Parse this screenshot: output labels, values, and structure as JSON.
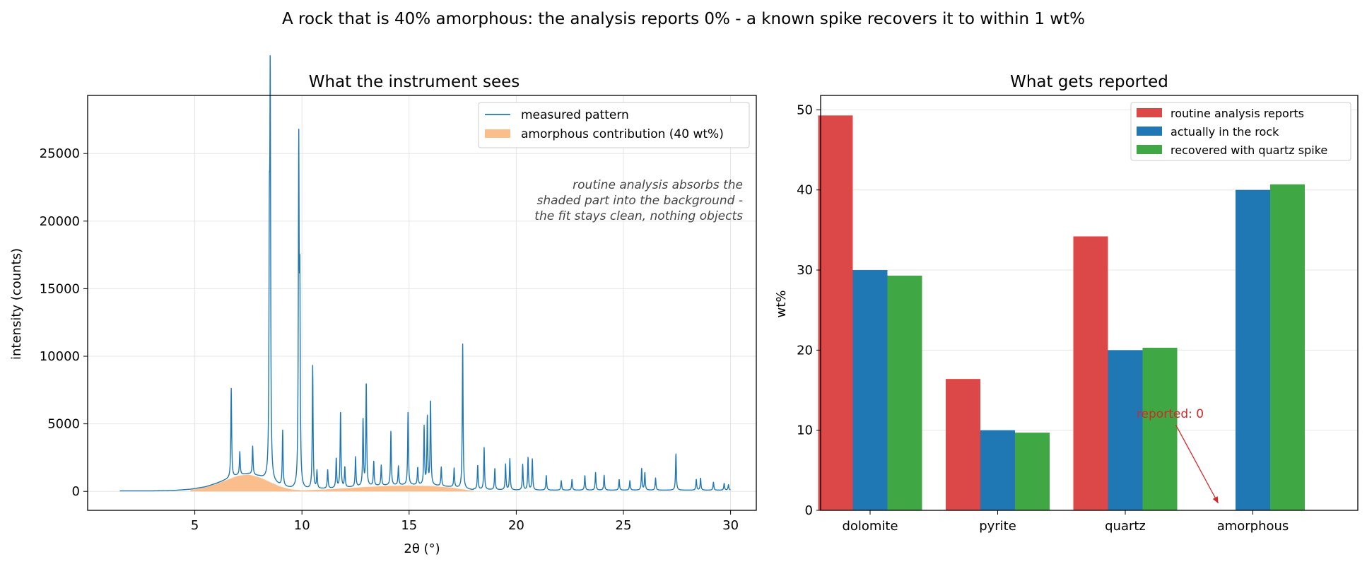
{
  "figure": {
    "suptitle": "A rock that is 40% amorphous: the analysis reports 0% - a known spike recovers it to within 1 wt%"
  },
  "chart_data": [
    {
      "type": "line",
      "title": "What the instrument sees",
      "xlabel": "2θ (°)",
      "ylabel": "intensity (counts)",
      "xlim": [
        0,
        31.2
      ],
      "ylim": [
        -1400,
        29300
      ],
      "xticks": [
        5,
        10,
        15,
        20,
        25,
        30
      ],
      "yticks": [
        0,
        5000,
        10000,
        15000,
        20000,
        25000
      ],
      "grid": true,
      "legend_position": "top-right",
      "legend": [
        "measured pattern",
        "amorphous contribution (40 wt%)"
      ],
      "annotation": "routine analysis absorbs the\nshaded part into the background -\nthe fit stays clean, nothing objects",
      "colors": {
        "measured": "#1f77b4",
        "amorphous": "#f9be8c"
      },
      "amorphous_hump": {
        "x": [
          1.5,
          3.0,
          4.0,
          4.8,
          5.5,
          6.0,
          6.5,
          7.0,
          7.5,
          8.0,
          8.5,
          9.0,
          9.5,
          10.0,
          11.0,
          12.0,
          13.0,
          14.0,
          15.0,
          16.0,
          17.0,
          17.5,
          18.0,
          20.0,
          22.0,
          25.0,
          30.0
        ],
        "y": [
          0,
          0,
          30,
          120,
          300,
          550,
          850,
          1150,
          1250,
          1050,
          700,
          350,
          150,
          80,
          140,
          230,
          330,
          400,
          430,
          400,
          280,
          150,
          50,
          0,
          0,
          0,
          0
        ]
      },
      "peaks": [
        {
          "x": 6.7,
          "y": 6600
        },
        {
          "x": 7.1,
          "y": 1700
        },
        {
          "x": 7.7,
          "y": 2100
        },
        {
          "x": 8.52,
          "y": 28100
        },
        {
          "x": 8.48,
          "y": 15800
        },
        {
          "x": 9.1,
          "y": 4100
        },
        {
          "x": 9.85,
          "y": 24500
        },
        {
          "x": 9.9,
          "y": 13400
        },
        {
          "x": 10.5,
          "y": 9100
        },
        {
          "x": 10.7,
          "y": 1300
        },
        {
          "x": 11.2,
          "y": 1400
        },
        {
          "x": 11.6,
          "y": 2200
        },
        {
          "x": 11.8,
          "y": 5700
        },
        {
          "x": 12.0,
          "y": 1500
        },
        {
          "x": 12.5,
          "y": 2200
        },
        {
          "x": 12.85,
          "y": 4900
        },
        {
          "x": 13.0,
          "y": 7700
        },
        {
          "x": 13.35,
          "y": 1800
        },
        {
          "x": 13.7,
          "y": 1500
        },
        {
          "x": 14.15,
          "y": 4000
        },
        {
          "x": 14.5,
          "y": 1400
        },
        {
          "x": 14.95,
          "y": 5400
        },
        {
          "x": 15.4,
          "y": 1300
        },
        {
          "x": 15.7,
          "y": 4300
        },
        {
          "x": 15.85,
          "y": 5000
        },
        {
          "x": 16.0,
          "y": 6300
        },
        {
          "x": 16.5,
          "y": 1400
        },
        {
          "x": 17.1,
          "y": 1400
        },
        {
          "x": 17.5,
          "y": 10700
        },
        {
          "x": 18.2,
          "y": 1800
        },
        {
          "x": 18.5,
          "y": 3100
        },
        {
          "x": 19.0,
          "y": 1600
        },
        {
          "x": 19.5,
          "y": 1900
        },
        {
          "x": 19.7,
          "y": 2300
        },
        {
          "x": 20.3,
          "y": 1900
        },
        {
          "x": 20.55,
          "y": 2400
        },
        {
          "x": 20.75,
          "y": 2300
        },
        {
          "x": 21.4,
          "y": 1100
        },
        {
          "x": 22.1,
          "y": 700
        },
        {
          "x": 22.6,
          "y": 800
        },
        {
          "x": 23.2,
          "y": 1100
        },
        {
          "x": 23.7,
          "y": 1300
        },
        {
          "x": 24.1,
          "y": 1100
        },
        {
          "x": 24.8,
          "y": 800
        },
        {
          "x": 25.3,
          "y": 700
        },
        {
          "x": 25.85,
          "y": 1600
        },
        {
          "x": 26.0,
          "y": 1300
        },
        {
          "x": 26.5,
          "y": 900
        },
        {
          "x": 27.45,
          "y": 2700
        },
        {
          "x": 28.4,
          "y": 800
        },
        {
          "x": 28.6,
          "y": 900
        },
        {
          "x": 29.2,
          "y": 600
        },
        {
          "x": 29.7,
          "y": 500
        },
        {
          "x": 29.9,
          "y": 400
        }
      ]
    },
    {
      "type": "bar",
      "title": "What gets reported",
      "ylabel": "wt%",
      "categories": [
        "dolomite",
        "pyrite",
        "quartz",
        "amorphous"
      ],
      "ylim": [
        0,
        51.8
      ],
      "yticks": [
        0,
        10,
        20,
        30,
        40,
        50
      ],
      "grid": true,
      "legend_position": "top-right",
      "series": [
        {
          "name": "routine analysis reports",
          "color": "#dc4848",
          "values": [
            49.3,
            16.4,
            34.2,
            0
          ]
        },
        {
          "name": "actually in the rock",
          "color": "#1f77b4",
          "values": [
            30.0,
            10.0,
            20.0,
            40.0
          ]
        },
        {
          "name": "recovered with quartz spike",
          "color": "#3fa844",
          "values": [
            29.3,
            9.7,
            20.3,
            40.7
          ]
        }
      ],
      "annotation": {
        "text": "reported: 0",
        "color": "#d62728",
        "category": "amorphous",
        "series": "routine analysis reports"
      }
    }
  ]
}
